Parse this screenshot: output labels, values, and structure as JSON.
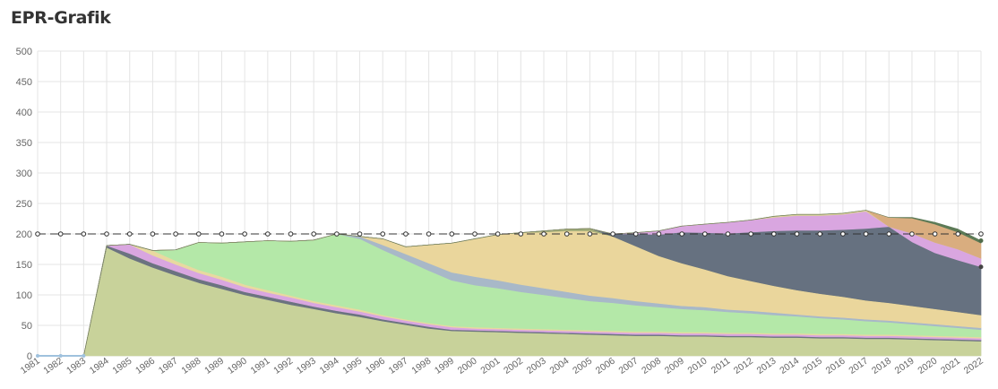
{
  "page": {
    "title": "EPR-Grafik"
  },
  "chart_data": {
    "type": "area",
    "stacked": true,
    "grid": true,
    "ylim": [
      0,
      500
    ],
    "yticks": [
      "0",
      "50",
      "100",
      "150",
      "200",
      "250",
      "300",
      "350",
      "400",
      "450",
      "500"
    ],
    "categories": [
      "1981",
      "1982",
      "1983",
      "1984",
      "1985",
      "1986",
      "1987",
      "1988",
      "1989",
      "1990",
      "1991",
      "1992",
      "1993",
      "1994",
      "1995",
      "1996",
      "1997",
      "1998",
      "1999",
      "2000",
      "2001",
      "2002",
      "2003",
      "2004",
      "2005",
      "2006",
      "2007",
      "2008",
      "2009",
      "2010",
      "2011",
      "2012",
      "2013",
      "2014",
      "2015",
      "2016",
      "2017",
      "2018",
      "2019",
      "2020",
      "2021",
      "2022"
    ],
    "reference_line": {
      "style": "dashed with circle markers",
      "color": "#333333",
      "values": [
        200,
        200,
        200,
        200,
        200,
        200,
        200,
        200,
        200,
        200,
        200,
        200,
        200,
        200,
        200,
        200,
        200,
        200,
        200,
        200,
        200,
        200,
        200,
        200,
        200,
        200,
        200,
        200,
        200,
        200,
        200,
        200,
        200,
        200,
        200,
        200,
        200,
        200,
        200,
        200,
        200,
        200
      ]
    },
    "series": [
      {
        "color": "#c8d29a",
        "values": [
          0,
          0,
          0,
          178,
          160,
          145,
          132,
          120,
          110,
          100,
          92,
          84,
          77,
          70,
          64,
          57,
          51,
          45,
          41,
          40,
          39,
          38,
          37,
          36,
          35,
          34,
          33,
          33,
          32,
          32,
          31,
          31,
          30,
          30,
          29,
          29,
          28,
          28,
          27,
          26,
          25,
          24
        ]
      },
      {
        "color": "#6b7380",
        "values": [
          0,
          0,
          0,
          3,
          8,
          7,
          7,
          6,
          6,
          5,
          5,
          5,
          4,
          4,
          4,
          3,
          3,
          3,
          2,
          2,
          2,
          2,
          2,
          2,
          2,
          2,
          2,
          2,
          2,
          2,
          2,
          2,
          2,
          2,
          2,
          2,
          2,
          2,
          2,
          2,
          2,
          2
        ]
      },
      {
        "color": "#d9a6e0",
        "values": [
          0,
          0,
          0,
          0,
          15,
          13,
          11,
          10,
          9,
          8,
          7,
          7,
          6,
          6,
          5,
          5,
          4,
          4,
          4,
          3,
          3,
          3,
          3,
          3,
          3,
          3,
          3,
          3,
          3,
          3,
          3,
          3,
          3,
          3,
          3,
          3,
          3,
          3,
          3,
          3,
          3,
          3
        ]
      },
      {
        "color": "#e8d9a0",
        "values": [
          0,
          0,
          0,
          0,
          0,
          8,
          6,
          5,
          5,
          4,
          4,
          3,
          3,
          3,
          3,
          2,
          2,
          2,
          2,
          2,
          2,
          2,
          2,
          2,
          2,
          2,
          2,
          2,
          2,
          2,
          2,
          2,
          2,
          2,
          2,
          2,
          2,
          2,
          2,
          2,
          2,
          2
        ]
      },
      {
        "color": "#b4e8a8",
        "values": [
          0,
          0,
          0,
          0,
          0,
          0,
          18,
          45,
          55,
          70,
          81,
          89,
          100,
          117,
          116,
          107,
          97,
          86,
          75,
          69,
          65,
          60,
          56,
          52,
          48,
          46,
          43,
          40,
          38,
          36,
          34,
          32,
          30,
          28,
          26,
          24,
          22,
          20,
          18,
          16,
          14,
          12
        ]
      },
      {
        "color": "#a8b8c8",
        "values": [
          0,
          0,
          0,
          0,
          0,
          0,
          0,
          0,
          0,
          0,
          0,
          0,
          0,
          0,
          4,
          8,
          10,
          12,
          13,
          14,
          13,
          12,
          11,
          10,
          9,
          8,
          7,
          6,
          5,
          5,
          4,
          4,
          4,
          3,
          3,
          3,
          3,
          3,
          3,
          3,
          3,
          3
        ]
      },
      {
        "color": "#ead69c",
        "values": [
          0,
          0,
          0,
          0,
          0,
          0,
          0,
          0,
          0,
          0,
          0,
          0,
          0,
          0,
          0,
          10,
          12,
          30,
          48,
          62,
          75,
          85,
          92,
          100,
          106,
          101,
          90,
          78,
          70,
          62,
          55,
          49,
          44,
          40,
          37,
          34,
          31,
          29,
          27,
          25,
          23,
          21
        ]
      },
      {
        "color": "#a4ae7a",
        "values": [
          0,
          0,
          0,
          0,
          0,
          0,
          0,
          0,
          0,
          0,
          0,
          0,
          0,
          0,
          0,
          0,
          0,
          0,
          0,
          0,
          0,
          0,
          2,
          3,
          4,
          0,
          0,
          0,
          0,
          0,
          0,
          0,
          0,
          0,
          0,
          0,
          0,
          0,
          0,
          0,
          0,
          0
        ]
      },
      {
        "color": "#667180",
        "values": [
          0,
          0,
          0,
          0,
          0,
          0,
          0,
          0,
          0,
          0,
          0,
          0,
          0,
          0,
          0,
          0,
          0,
          0,
          0,
          0,
          0,
          0,
          0,
          0,
          0,
          4,
          20,
          35,
          51,
          60,
          70,
          80,
          90,
          98,
          104,
          110,
          118,
          125,
          105,
          92,
          85,
          79
        ]
      },
      {
        "color": "#d9a6e0",
        "values": [
          0,
          0,
          0,
          0,
          0,
          0,
          0,
          0,
          0,
          0,
          0,
          0,
          0,
          0,
          0,
          0,
          0,
          0,
          0,
          0,
          0,
          0,
          0,
          0,
          0,
          0,
          2,
          6,
          10,
          14,
          18,
          20,
          22,
          24,
          24,
          25,
          28,
          0,
          14,
          17,
          18,
          14
        ]
      },
      {
        "color": "#dcd09c",
        "values": [
          0,
          0,
          0,
          0,
          0,
          0,
          0,
          0,
          0,
          0,
          0,
          0,
          0,
          0,
          0,
          0,
          0,
          0,
          0,
          0,
          0,
          0,
          0,
          0,
          0,
          0,
          0,
          0,
          0,
          0,
          0,
          0,
          2,
          2,
          2,
          2,
          2,
          0,
          0,
          0,
          0,
          0
        ]
      },
      {
        "color": "#d9ad7f",
        "values": [
          0,
          0,
          0,
          0,
          0,
          0,
          0,
          0,
          0,
          0,
          0,
          0,
          0,
          0,
          0,
          0,
          0,
          0,
          0,
          0,
          0,
          0,
          0,
          0,
          0,
          0,
          0,
          0,
          0,
          0,
          0,
          0,
          0,
          0,
          0,
          0,
          0,
          15,
          25,
          30,
          28,
          25
        ]
      },
      {
        "color": "#5c7a56",
        "values": [
          0,
          0,
          0,
          0,
          0,
          0,
          0,
          0,
          0,
          0,
          0,
          0,
          0,
          0,
          0,
          0,
          0,
          0,
          0,
          0,
          0,
          0,
          0,
          0,
          0,
          0,
          0,
          0,
          0,
          0,
          0,
          0,
          0,
          0,
          0,
          0,
          0,
          0,
          1,
          3,
          5,
          4
        ]
      }
    ]
  }
}
